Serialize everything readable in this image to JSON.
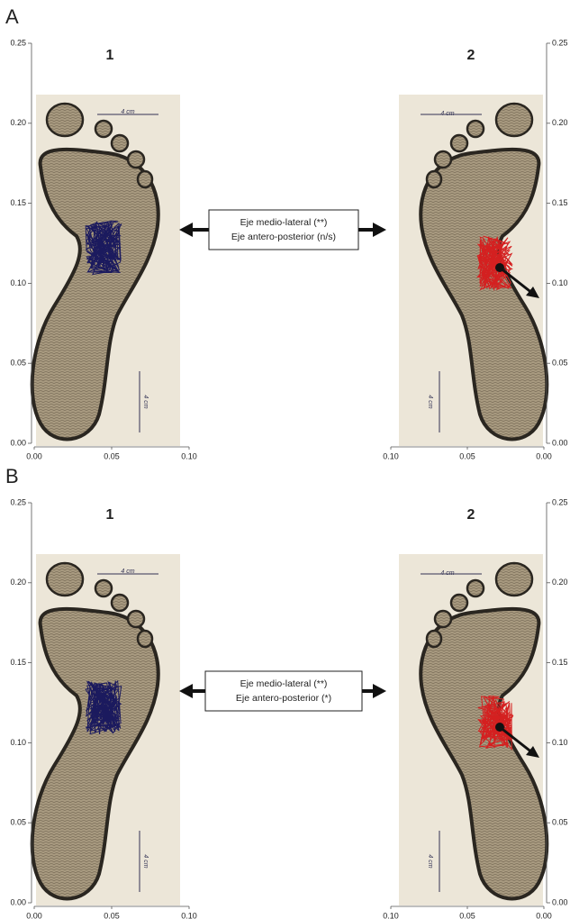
{
  "panels": [
    {
      "label": "A",
      "plots": [
        {
          "title": "1",
          "yticks": [
            "0.00",
            "0.05",
            "0.10",
            "0.15",
            "0.20",
            "0.25"
          ],
          "xticks": [
            "0.00",
            "0.05",
            "0.10"
          ],
          "ruler_labels": [
            "4 cm",
            "4 cm"
          ]
        },
        {
          "title": "2",
          "yticks": [
            "0.00",
            "0.05",
            "0.10",
            "0.15",
            "0.20",
            "0.25"
          ],
          "xticks": [
            "0.10",
            "0.05",
            "0.00"
          ],
          "ruler_labels": [
            "4 cm",
            "4 cm"
          ]
        }
      ],
      "box": [
        "Eje medio-lateral (**)",
        "Eje antero-posterior (n/s)"
      ]
    },
    {
      "label": "B",
      "plots": [
        {
          "title": "1",
          "yticks": [
            "0.00",
            "0.05",
            "0.10",
            "0.15",
            "0.20",
            "0.25"
          ],
          "xticks": [
            "0.00",
            "0.05",
            "0.10"
          ],
          "ruler_labels": [
            "4 cm",
            "4 cm"
          ]
        },
        {
          "title": "2",
          "yticks": [
            "0.00",
            "0.05",
            "0.10",
            "0.15",
            "0.20",
            "0.25"
          ],
          "xticks": [
            "0.10",
            "0.05",
            "0.00"
          ],
          "ruler_labels": [
            "4 cm",
            "4 cm"
          ]
        }
      ],
      "box": [
        "Eje medio-lateral (**)",
        "Eje antero-posterior (*)"
      ]
    }
  ]
}
